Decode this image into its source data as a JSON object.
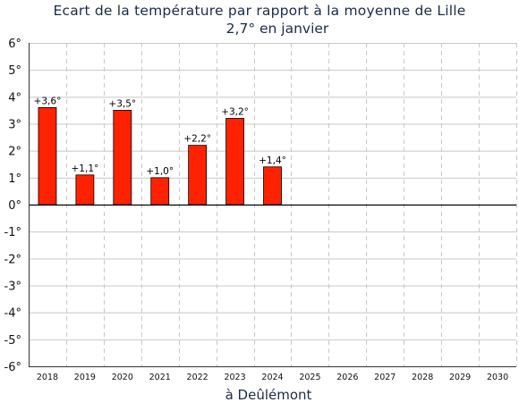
{
  "title": "Ecart de la température par rapport à la moyenne de Lille",
  "subtitle": "2,7° en janvier",
  "chart_data": {
    "type": "bar",
    "title": "Ecart de la température par rapport à la moyenne de Lille",
    "subtitle": "2,7° en janvier",
    "xlabel": "à Deûlémont",
    "ylabel": "",
    "categories": [
      "2018",
      "2019",
      "2020",
      "2021",
      "2022",
      "2023",
      "2024",
      "2025",
      "2026",
      "2027",
      "2028",
      "2029",
      "2030"
    ],
    "values": [
      3.6,
      1.1,
      3.5,
      1.0,
      2.2,
      3.2,
      1.4,
      null,
      null,
      null,
      null,
      null,
      null
    ],
    "data_labels": [
      "+3,6°",
      "+1,1°",
      "+3,5°",
      "+1,0°",
      "+2,2°",
      "+3,2°",
      "+1,4°",
      "",
      "",
      "",
      "",
      "",
      ""
    ],
    "ylim": [
      -6,
      6
    ],
    "y_ticks": [
      6,
      5,
      4,
      3,
      2,
      1,
      0,
      -1,
      -2,
      -3,
      -4,
      -5,
      -6
    ],
    "y_tick_labels": [
      "6°",
      "5°",
      "4°",
      "3°",
      "2°",
      "1°",
      "0°",
      "-1°",
      "-2°",
      "-3°",
      "-4°",
      "-5°",
      "-6°"
    ],
    "grid": true,
    "colors": {
      "bar": "#ff2200",
      "bar_border": "#000000",
      "grid": "#c8c8c8",
      "title": "#1a2b4a"
    }
  }
}
